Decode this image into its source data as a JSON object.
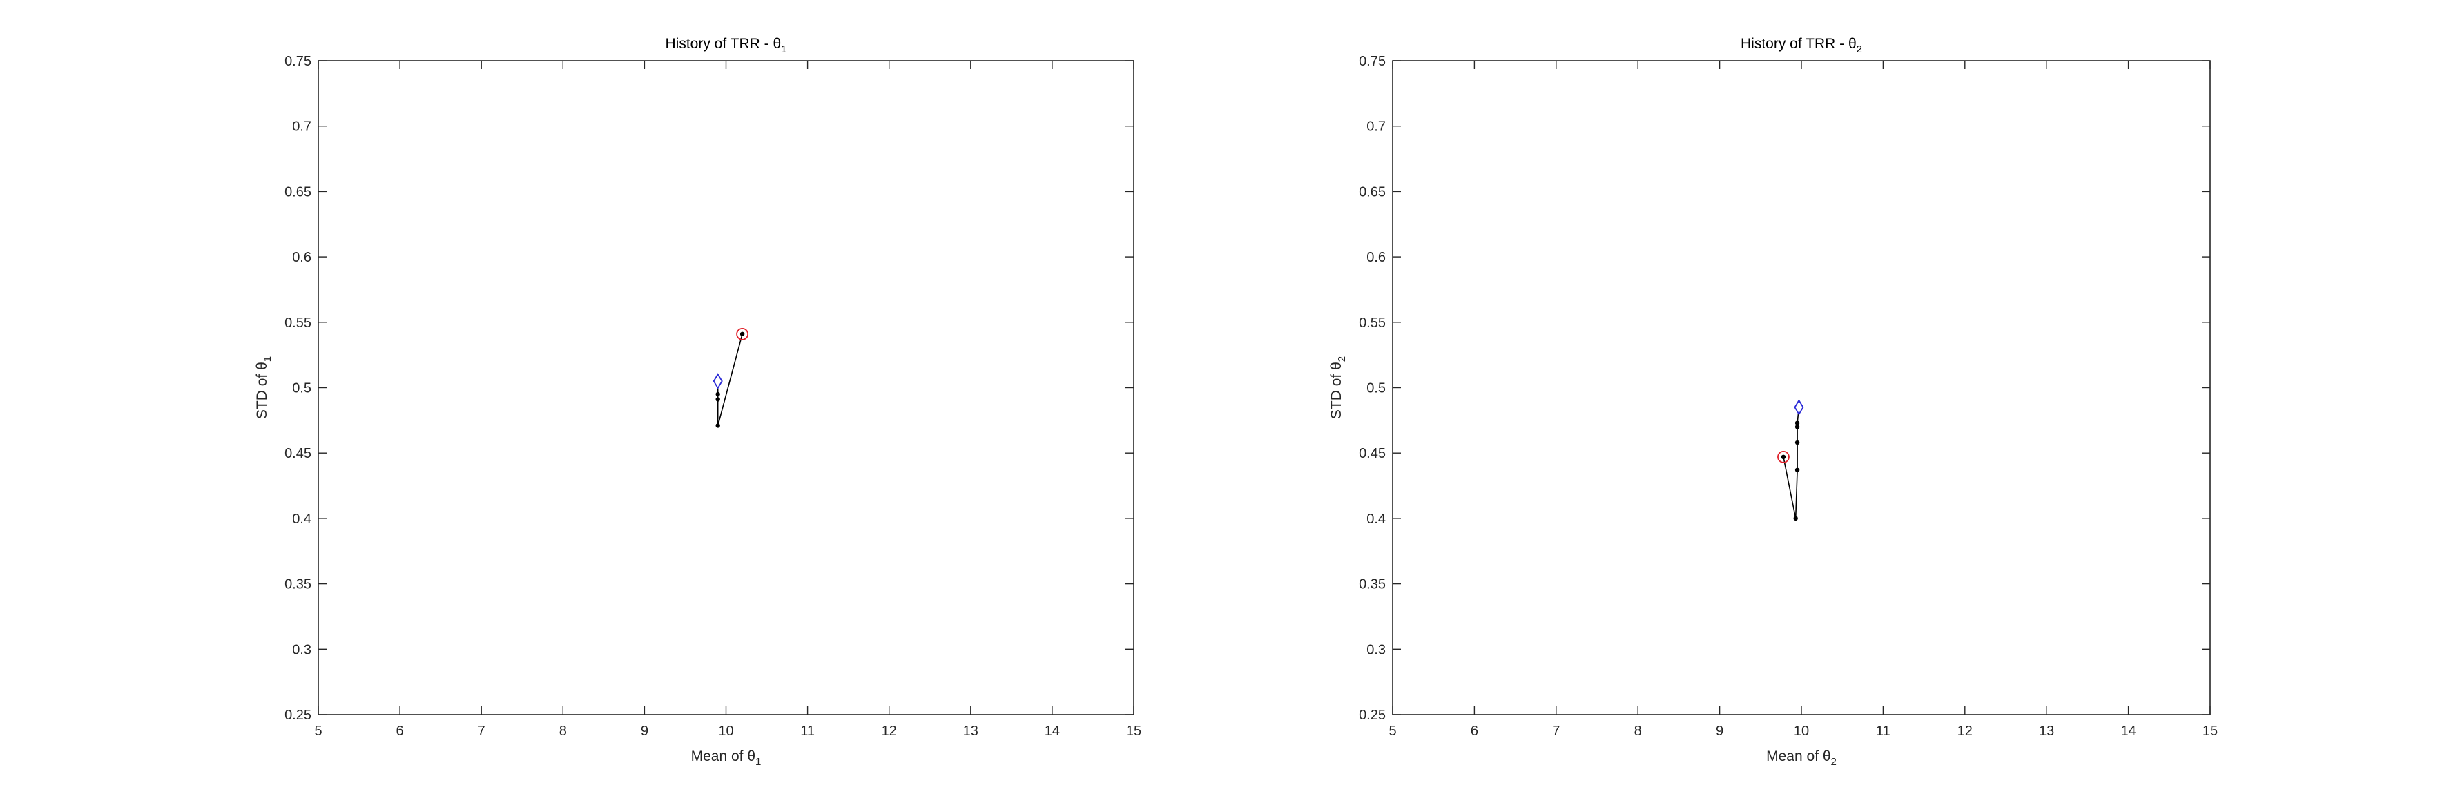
{
  "chart_data": [
    {
      "type": "line",
      "title_prefix": "History of TRR - ",
      "title_symbol": "θ",
      "title_sub": "1",
      "xlabel_prefix": "Mean of ",
      "xlabel_symbol": "θ",
      "xlabel_sub": "1",
      "ylabel_prefix": "STD of ",
      "ylabel_symbol": "θ",
      "ylabel_sub": "1",
      "xlim": [
        5,
        15
      ],
      "ylim": [
        0.25,
        0.75
      ],
      "xticks": [
        "5",
        "6",
        "7",
        "8",
        "9",
        "10",
        "11",
        "12",
        "13",
        "14",
        "15"
      ],
      "yticks": [
        "0.25",
        "0.3",
        "0.35",
        "0.4",
        "0.45",
        "0.5",
        "0.55",
        "0.6",
        "0.65",
        "0.7",
        "0.75"
      ],
      "grid": false,
      "series": [
        {
          "x": [
            10.2,
            9.9,
            9.9,
            9.9,
            9.9
          ],
          "y": [
            0.541,
            0.471,
            0.491,
            0.495,
            0.505
          ],
          "start_marker": "circle",
          "end_marker": "diamond"
        }
      ],
      "colors": {
        "start": "#e0202a",
        "end": "#2a2ad6",
        "line": "#000000"
      }
    },
    {
      "type": "line",
      "title_prefix": "History of TRR - ",
      "title_symbol": "θ",
      "title_sub": "2",
      "xlabel_prefix": "Mean of ",
      "xlabel_symbol": "θ",
      "xlabel_sub": "2",
      "ylabel_prefix": "STD of ",
      "ylabel_symbol": "θ",
      "ylabel_sub": "2",
      "xlim": [
        5,
        15
      ],
      "ylim": [
        0.25,
        0.75
      ],
      "xticks": [
        "5",
        "6",
        "7",
        "8",
        "9",
        "10",
        "11",
        "12",
        "13",
        "14",
        "15"
      ],
      "yticks": [
        "0.25",
        "0.3",
        "0.35",
        "0.4",
        "0.45",
        "0.5",
        "0.55",
        "0.6",
        "0.65",
        "0.7",
        "0.75"
      ],
      "grid": false,
      "series": [
        {
          "x": [
            9.78,
            9.93,
            9.95,
            9.95,
            9.95,
            9.95,
            9.97
          ],
          "y": [
            0.447,
            0.4,
            0.437,
            0.458,
            0.47,
            0.473,
            0.485
          ],
          "start_marker": "circle",
          "end_marker": "diamond"
        }
      ],
      "colors": {
        "start": "#e0202a",
        "end": "#2a2ad6",
        "line": "#000000"
      }
    }
  ]
}
